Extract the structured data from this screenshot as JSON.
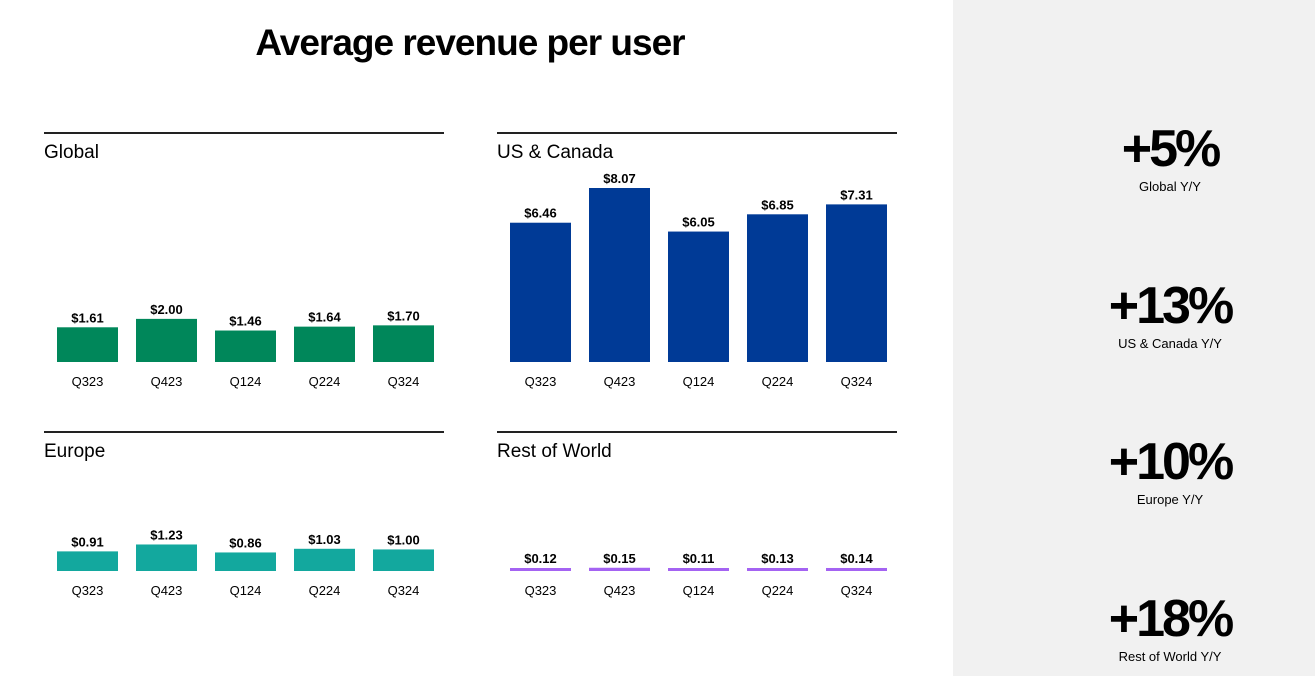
{
  "page_title": "Average revenue per user",
  "chart_data": [
    {
      "type": "bar",
      "title": "Global",
      "categories": [
        "Q323",
        "Q423",
        "Q124",
        "Q224",
        "Q324"
      ],
      "values": [
        1.61,
        2.0,
        1.46,
        1.64,
        1.7
      ],
      "labels": [
        "$1.61",
        "$2.00",
        "$1.46",
        "$1.64",
        "$1.70"
      ],
      "color": "#00875A",
      "xlabel": "",
      "ylabel": ""
    },
    {
      "type": "bar",
      "title": "US & Canada",
      "categories": [
        "Q323",
        "Q423",
        "Q124",
        "Q224",
        "Q324"
      ],
      "values": [
        6.46,
        8.07,
        6.05,
        6.85,
        7.31
      ],
      "labels": [
        "$6.46",
        "$8.07",
        "$6.05",
        "$6.85",
        "$7.31"
      ],
      "color": "#003A96",
      "xlabel": "",
      "ylabel": ""
    },
    {
      "type": "bar",
      "title": "Europe",
      "categories": [
        "Q323",
        "Q423",
        "Q124",
        "Q224",
        "Q324"
      ],
      "values": [
        0.91,
        1.23,
        0.86,
        1.03,
        1.0
      ],
      "labels": [
        "$0.91",
        "$1.23",
        "$0.86",
        "$1.03",
        "$1.00"
      ],
      "color": "#13A89E",
      "xlabel": "",
      "ylabel": ""
    },
    {
      "type": "bar",
      "title": "Rest of World",
      "categories": [
        "Q323",
        "Q423",
        "Q124",
        "Q224",
        "Q324"
      ],
      "values": [
        0.12,
        0.15,
        0.11,
        0.13,
        0.14
      ],
      "labels": [
        "$0.12",
        "$0.15",
        "$0.11",
        "$0.13",
        "$0.14"
      ],
      "color": "#A463F2",
      "xlabel": "",
      "ylabel": ""
    }
  ],
  "yoy": [
    {
      "value": "+5%",
      "label": "Global Y/Y"
    },
    {
      "value": "+13%",
      "label": "US & Canada Y/Y"
    },
    {
      "value": "+10%",
      "label": "Europe Y/Y"
    },
    {
      "value": "+18%",
      "label": "Rest of World Y/Y"
    }
  ]
}
